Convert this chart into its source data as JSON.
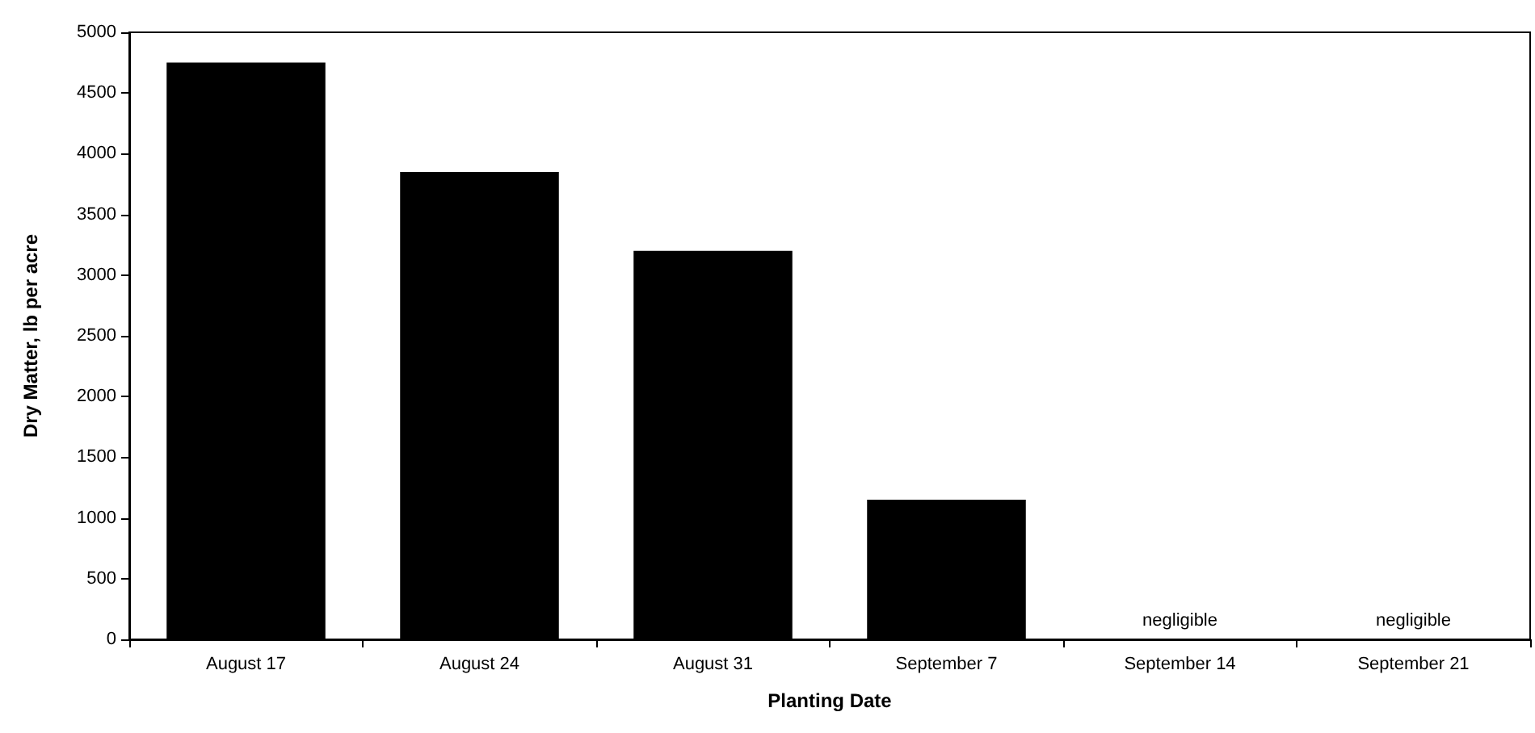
{
  "chart_data": {
    "type": "bar",
    "xlabel": "Planting Date",
    "ylabel": "Dry Matter, lb per acre",
    "categories": [
      "August 17",
      "August 24",
      "August 31",
      "September 7",
      "September 14",
      "September 21"
    ],
    "values": [
      4750,
      3850,
      3200,
      1150,
      null,
      null
    ],
    "color": "#000000",
    "ylim": [
      0,
      5000
    ],
    "yticks": [
      0,
      500,
      1000,
      1500,
      2000,
      2500,
      3000,
      3500,
      4000,
      4500,
      5000
    ],
    "annotations": [
      "negligible",
      "negligible"
    ]
  }
}
